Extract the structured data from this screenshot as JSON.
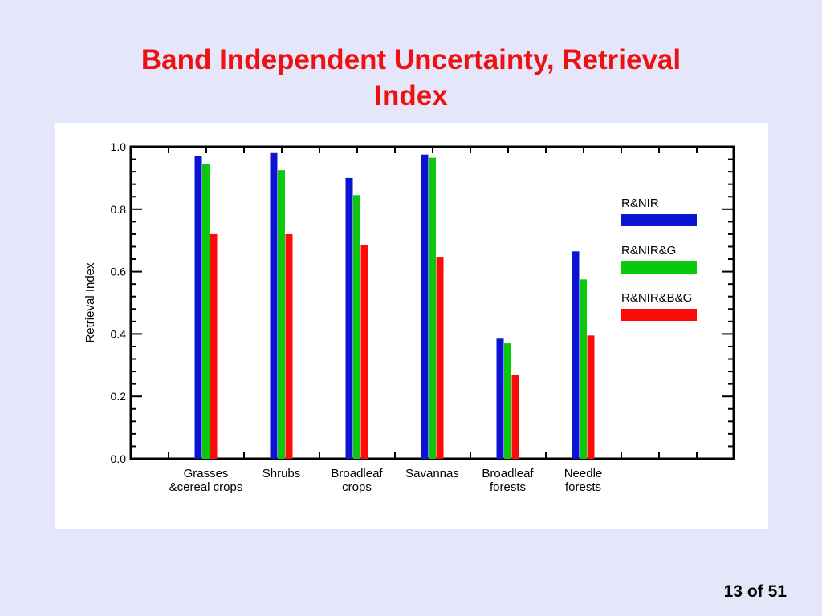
{
  "slide": {
    "title_line1": "Band Independent Uncertainty, Retrieval",
    "title_line2": "Index",
    "page_current": "13 of",
    "page_total": "51"
  },
  "chart_data": {
    "type": "bar",
    "title": "",
    "xlabel": "",
    "ylabel": "Retrieval Index",
    "ylim": [
      0.0,
      1.0
    ],
    "yticks": [
      "0.0",
      "0.2",
      "0.4",
      "0.6",
      "0.8",
      "1.0"
    ],
    "categories": [
      [
        "Grasses",
        "&cereal crops"
      ],
      [
        "Shrubs"
      ],
      [
        "Broadleaf",
        "crops"
      ],
      [
        "Savannas"
      ],
      [
        "Broadleaf",
        "forests"
      ],
      [
        "Needle",
        "forests"
      ]
    ],
    "series": [
      {
        "name": "R&NIR",
        "color": "#0a14d2",
        "values": [
          0.97,
          0.98,
          0.9,
          0.975,
          0.385,
          0.665
        ]
      },
      {
        "name": "R&NIR&G",
        "color": "#0cc80c",
        "values": [
          0.945,
          0.925,
          0.845,
          0.965,
          0.37,
          0.575
        ]
      },
      {
        "name": "R&NIR&B&G",
        "color": "#ff0a0a",
        "values": [
          0.72,
          0.72,
          0.685,
          0.645,
          0.27,
          0.395
        ]
      }
    ],
    "grid": false,
    "legend": "right"
  }
}
